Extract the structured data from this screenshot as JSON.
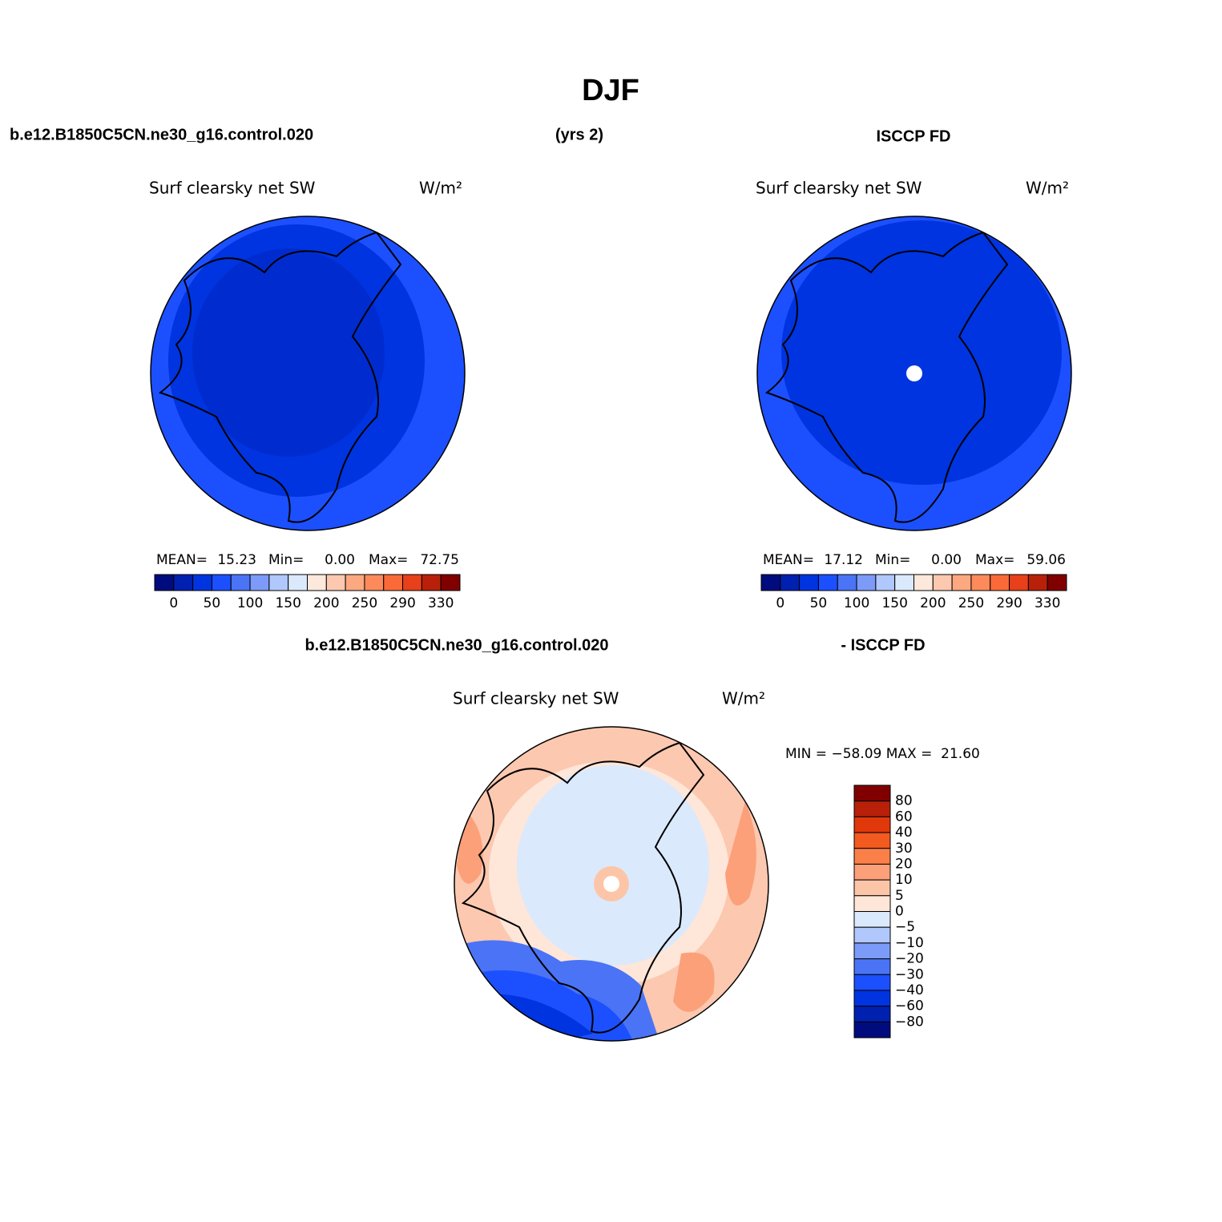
{
  "title": "DJF",
  "header": {
    "left": "b.e12.B1850C5CN.ne30_g16.control.020",
    "center": "(yrs 2)",
    "right": "ISCCP FD"
  },
  "panels": [
    {
      "variable": "Surf clearsky net SW",
      "units": "W/m²",
      "mean_label": "MEAN=",
      "mean": "15.23",
      "min_label": "Min=",
      "min": "0.00",
      "max_label": "Max=",
      "max": "72.75"
    },
    {
      "variable": "Surf clearsky net SW",
      "units": "W/m²",
      "mean_label": "MEAN=",
      "mean": "17.12",
      "min_label": "Min=",
      "min": "0.00",
      "max_label": "Max=",
      "max": "59.06"
    }
  ],
  "colorbar": {
    "colors": [
      "#000c7d",
      "#0020b0",
      "#0034e0",
      "#1c50ff",
      "#4a74f5",
      "#7c9bf8",
      "#b0c8fb",
      "#dbe9fd",
      "#fde8dc",
      "#fcc8b0",
      "#fca880",
      "#fc8a5a",
      "#f96a38",
      "#e8401a",
      "#b8200a",
      "#800000"
    ],
    "labels": [
      "0",
      "50",
      "100",
      "150",
      "200",
      "250",
      "290",
      "330"
    ]
  },
  "difference": {
    "header_left": "b.e12.B1850C5CN.ne30_g16.control.020",
    "header_right": "- ISCCP FD",
    "variable": "Surf clearsky net SW",
    "units": "W/m²",
    "stats": "MIN = −58.09 MAX =  21.60",
    "colorbar": {
      "colors": [
        "#800000",
        "#b8200a",
        "#e0380a",
        "#f35a1f",
        "#fb7f48",
        "#fca07a",
        "#fdc5a8",
        "#fee6d8",
        "#dbe9fd",
        "#b0c8fb",
        "#7c9bf8",
        "#4a74f5",
        "#1c50ff",
        "#0034e0",
        "#0020b0",
        "#000c7d"
      ],
      "labels": [
        "80",
        "60",
        "40",
        "30",
        "20",
        "10",
        "5",
        "0",
        "−5",
        "−10",
        "−20",
        "−30",
        "−40",
        "−60",
        "−80"
      ]
    }
  }
}
